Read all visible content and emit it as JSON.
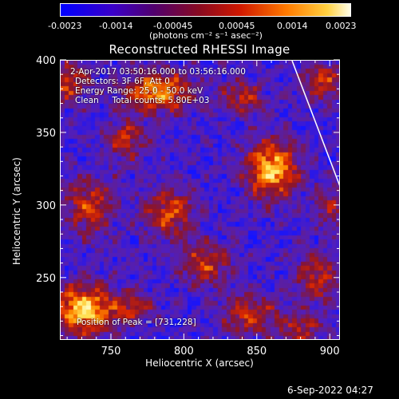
{
  "colorbar": {
    "ticks": [
      "-0.0023",
      "-0.0014",
      "-0.00045",
      "0.00045",
      "0.0014",
      "0.0023"
    ],
    "units": "(photons cm⁻² s⁻¹ asec⁻²)"
  },
  "annotations": {
    "time": "2-Apr-2017 03:50:16.000 to 03:56:16.000",
    "detectors": "Detectors: 3F 6F, Att 0",
    "energy": "Energy Range: 25.0 - 50.0 keV",
    "clean": "Clean     Total counts: 5.80E+03",
    "peak": "Position of Peak = [731,228]"
  },
  "footer": {
    "timestamp": "6-Sep-2022 04:27"
  },
  "chart_data": {
    "type": "heatmap",
    "title": "Reconstructed RHESSI Image",
    "xlabel": "Heliocentric X (arcsec)",
    "ylabel": "Heliocentric Y (arcsec)",
    "xlim": [
      715,
      907
    ],
    "ylim": [
      207,
      400
    ],
    "xticks": [
      750,
      800,
      850,
      900
    ],
    "yticks": [
      250,
      300,
      350,
      400
    ],
    "colorscale": [
      "#0000ff",
      "#4b0082",
      "#6a2aa8",
      "#a01010",
      "#e02000",
      "#ff8c00",
      "#ffff80"
    ],
    "zlim": [
      -0.0023,
      0.0023
    ],
    "blobs": [
      {
        "x": 731,
        "y": 228,
        "sx": 14,
        "sy": 12,
        "amp": 1.0
      },
      {
        "x": 860,
        "y": 325,
        "sx": 12,
        "sy": 14,
        "amp": 0.95
      },
      {
        "x": 782,
        "y": 378,
        "sx": 16,
        "sy": 10,
        "amp": 0.8
      },
      {
        "x": 720,
        "y": 385,
        "sx": 10,
        "sy": 10,
        "amp": 0.6
      },
      {
        "x": 895,
        "y": 385,
        "sx": 10,
        "sy": 9,
        "amp": 0.55
      },
      {
        "x": 735,
        "y": 300,
        "sx": 12,
        "sy": 14,
        "amp": 0.55
      },
      {
        "x": 790,
        "y": 295,
        "sx": 12,
        "sy": 12,
        "amp": 0.6
      },
      {
        "x": 815,
        "y": 260,
        "sx": 12,
        "sy": 10,
        "amp": 0.55
      },
      {
        "x": 760,
        "y": 345,
        "sx": 10,
        "sy": 10,
        "amp": 0.5
      },
      {
        "x": 840,
        "y": 375,
        "sx": 10,
        "sy": 8,
        "amp": 0.5
      },
      {
        "x": 845,
        "y": 225,
        "sx": 14,
        "sy": 10,
        "amp": 0.55
      },
      {
        "x": 890,
        "y": 250,
        "sx": 10,
        "sy": 12,
        "amp": 0.5
      },
      {
        "x": 900,
        "y": 300,
        "sx": 8,
        "sy": 10,
        "amp": 0.4
      },
      {
        "x": 765,
        "y": 230,
        "sx": 10,
        "sy": 8,
        "amp": 0.45
      },
      {
        "x": 880,
        "y": 215,
        "sx": 10,
        "sy": 8,
        "amp": 0.45
      }
    ]
  }
}
